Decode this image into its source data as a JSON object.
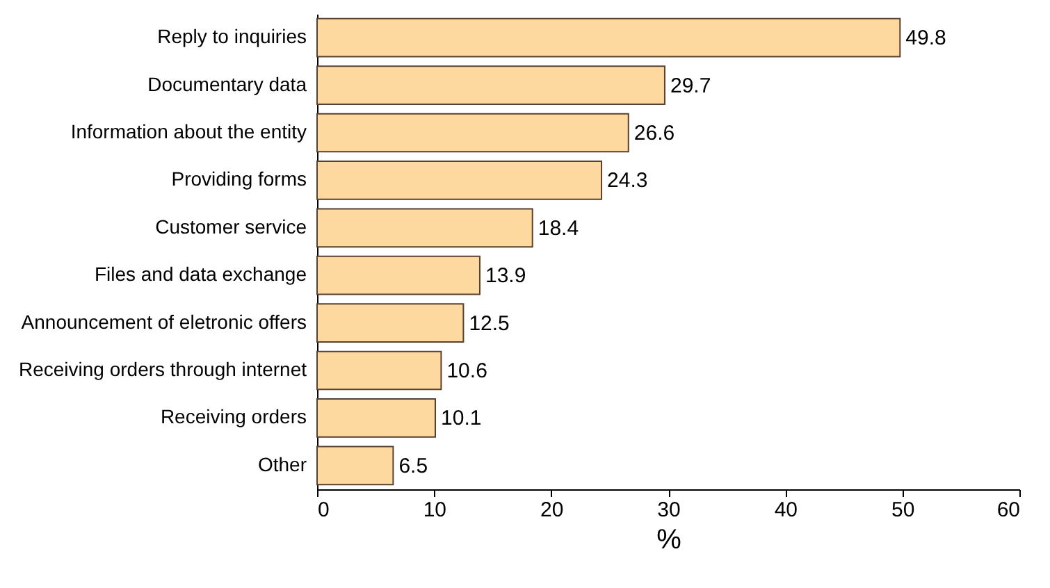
{
  "chart_data": {
    "type": "bar",
    "orientation": "horizontal",
    "xlabel": "%",
    "categories": [
      "Reply to inquiries",
      "Documentary data",
      "Information about the entity",
      "Providing forms",
      "Customer service",
      "Files and data exchange",
      "Announcement of eletronic offers",
      "Receiving orders through internet",
      "Receiving orders",
      "Other"
    ],
    "values": [
      49.8,
      29.7,
      26.6,
      24.3,
      18.4,
      13.9,
      12.5,
      10.6,
      10.1,
      6.5
    ],
    "color": "#fdd9a0",
    "xlim": [
      0,
      60
    ],
    "xticks": [
      0,
      10,
      20,
      30,
      40,
      50,
      60
    ],
    "data_labels": true
  }
}
